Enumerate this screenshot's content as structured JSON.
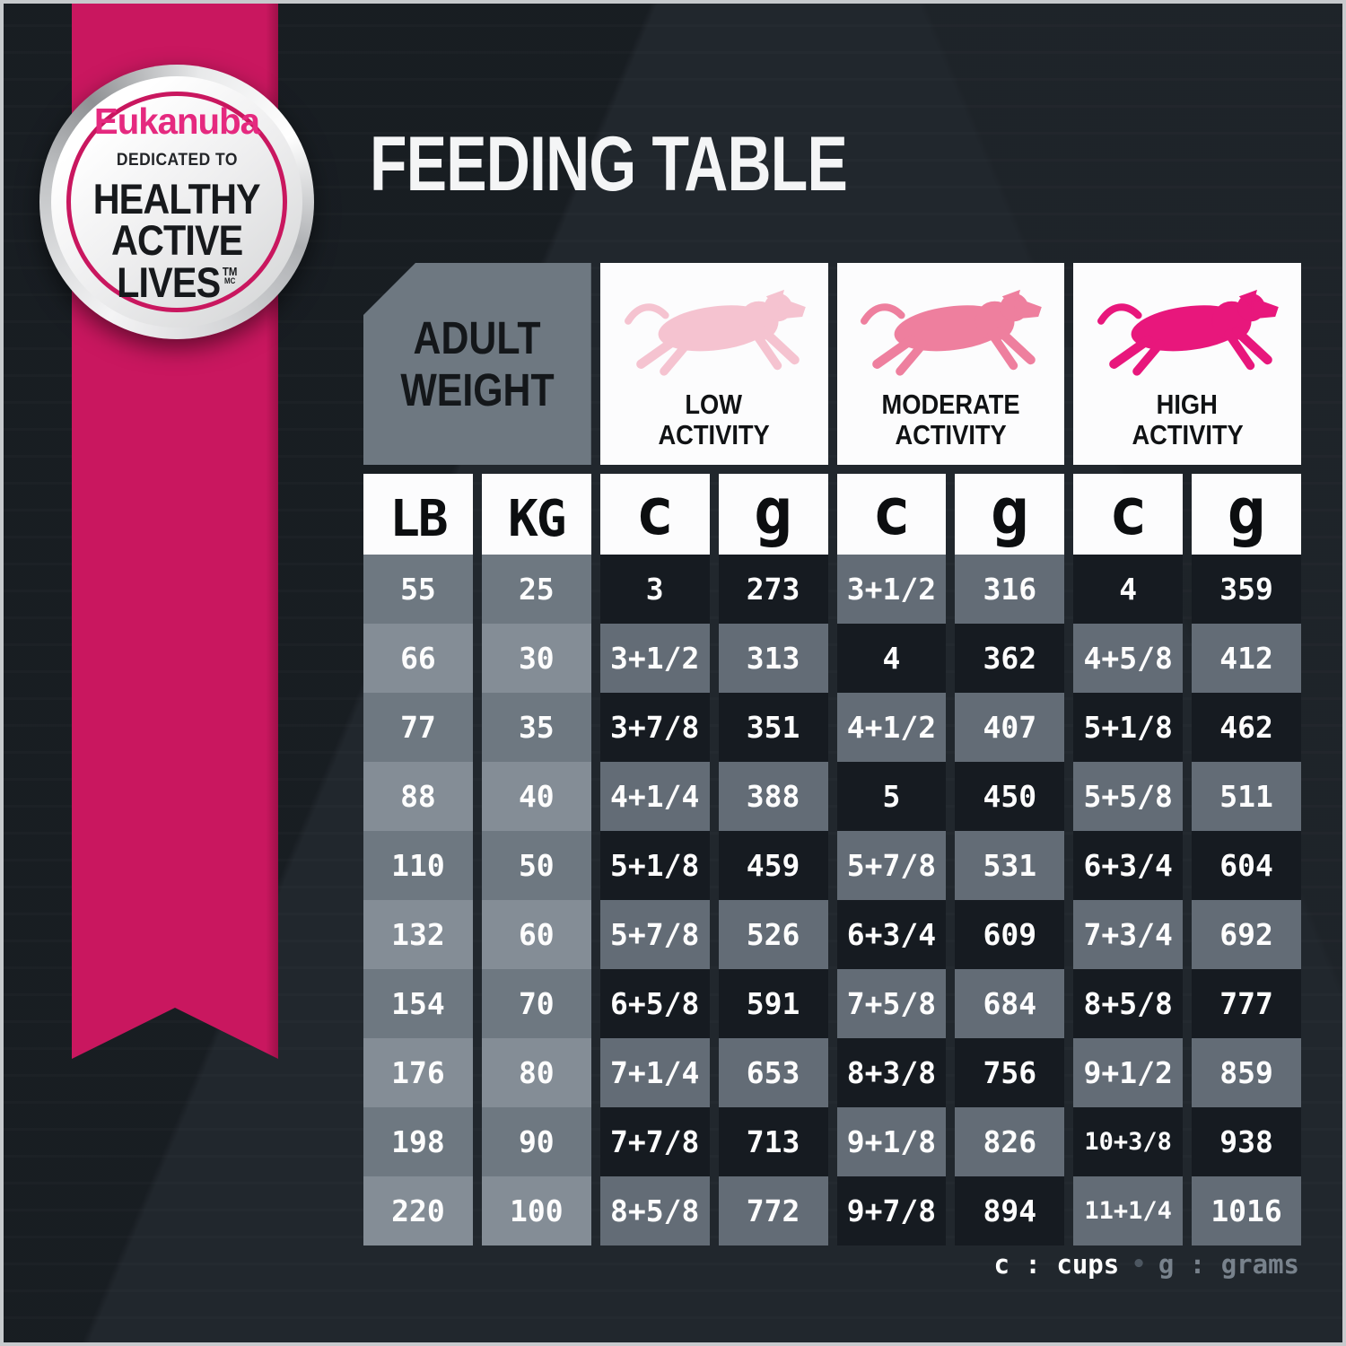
{
  "title": "FEEDING TABLE",
  "badge": {
    "brand": "Eukanuba",
    "tagline": "DEDICATED TO",
    "line1": "HEALTHY",
    "line2": "ACTIVE",
    "line3": "LIVES",
    "trademark": "TM",
    "trademark2": "MC"
  },
  "table": {
    "corner_header": [
      "ADULT",
      "WEIGHT"
    ],
    "groups": [
      {
        "label_line1": "LOW",
        "label_line2": "ACTIVITY",
        "dog_color": "#f5c3d0"
      },
      {
        "label_line1": "MODERATE",
        "label_line2": "ACTIVITY",
        "dog_color": "#ee7f9e"
      },
      {
        "label_line1": "HIGH",
        "label_line2": "ACTIVITY",
        "dog_color": "#e8177c"
      }
    ],
    "unit_headers": [
      "LB",
      "KG",
      "c",
      "g",
      "c",
      "g",
      "c",
      "g"
    ]
  },
  "chart_data": {
    "type": "table",
    "title": "FEEDING TABLE",
    "columns": [
      "LB",
      "KG",
      "Low Activity cups",
      "Low Activity grams",
      "Moderate Activity cups",
      "Moderate Activity grams",
      "High Activity cups",
      "High Activity grams"
    ],
    "rows": [
      [
        "55",
        "25",
        "3",
        "273",
        "3+1/2",
        "316",
        "4",
        "359"
      ],
      [
        "66",
        "30",
        "3+1/2",
        "313",
        "4",
        "362",
        "4+5/8",
        "412"
      ],
      [
        "77",
        "35",
        "3+7/8",
        "351",
        "4+1/2",
        "407",
        "5+1/8",
        "462"
      ],
      [
        "88",
        "40",
        "4+1/4",
        "388",
        "5",
        "450",
        "5+5/8",
        "511"
      ],
      [
        "110",
        "50",
        "5+1/8",
        "459",
        "5+7/8",
        "531",
        "6+3/4",
        "604"
      ],
      [
        "132",
        "60",
        "5+7/8",
        "526",
        "6+3/4",
        "609",
        "7+3/4",
        "692"
      ],
      [
        "154",
        "70",
        "6+5/8",
        "591",
        "7+5/8",
        "684",
        "8+5/8",
        "777"
      ],
      [
        "176",
        "80",
        "7+1/4",
        "653",
        "8+3/8",
        "756",
        "9+1/2",
        "859"
      ],
      [
        "198",
        "90",
        "7+7/8",
        "713",
        "9+1/8",
        "826",
        "10+3/8",
        "938"
      ],
      [
        "220",
        "100",
        "8+5/8",
        "772",
        "9+7/8",
        "894",
        "11+1/4",
        "1016"
      ]
    ]
  },
  "legend": {
    "cups": "c : cups",
    "separator": "•",
    "grams": "g : grams"
  },
  "colors": {
    "background": "#1d2329",
    "ribbon_pink": "#c9175f",
    "brand_pink": "#e5297f",
    "cell_dark": "#161b21",
    "cell_gray": "#636c76",
    "weight_cell_a": "#6e7881",
    "weight_cell_b": "#848d96",
    "box_white": "#fcfcfd",
    "dog_low": "#f5c3d0",
    "dog_moderate": "#ee7f9e",
    "dog_high": "#e8177c"
  }
}
